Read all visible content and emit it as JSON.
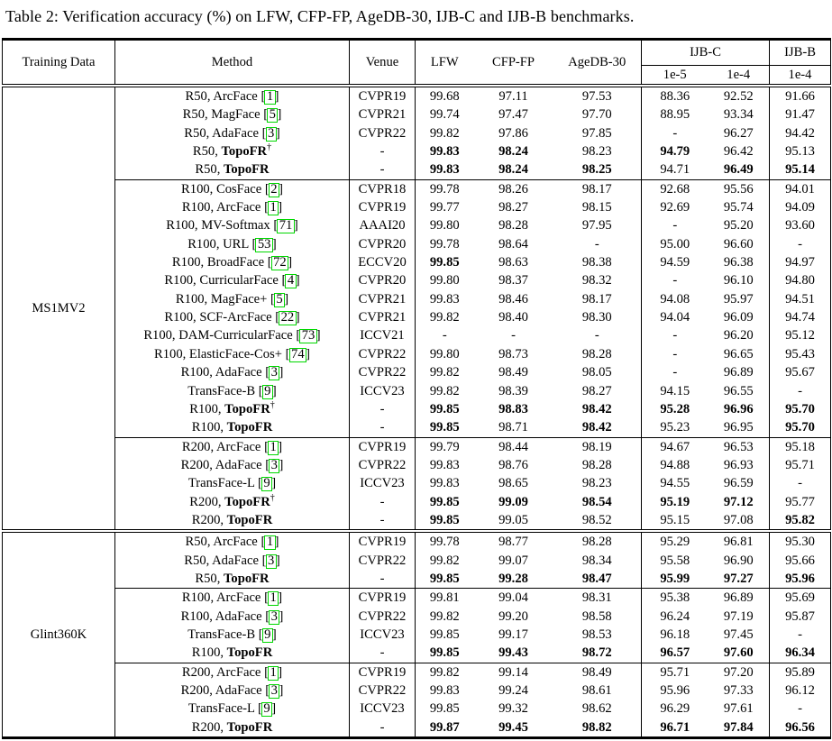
{
  "title": "Table 2: Verification accuracy (%) on LFW, CFP-FP, AgeDB-30, IJB-C and IJB-B benchmarks.",
  "colors": {
    "citation_box": "#00d800",
    "text": "#000000",
    "background": "#ffffff"
  },
  "table": {
    "header": {
      "training_data": "Training Data",
      "method": "Method",
      "venue": "Venue",
      "lfw": "LFW",
      "cfp_fp": "CFP-FP",
      "agedb30": "AgeDB-30",
      "ijbc": "IJB-C",
      "ijbb": "IJB-B",
      "ijbc_sub": [
        "1e-5",
        "1e-4"
      ],
      "ijbb_sub": [
        "1e-4"
      ]
    },
    "value_columns": [
      "LFW",
      "CFP-FP",
      "AgeDB-30",
      "IJB-C 1e-5",
      "IJB-C 1e-4",
      "IJB-B 1e-4"
    ],
    "sections": [
      {
        "training_data": "MS1MV2",
        "groups": [
          {
            "rows": [
              {
                "prefix": "R50, ",
                "name": "ArcFace",
                "cite": "1",
                "venue": "CVPR19",
                "values": [
                  "99.68",
                  "97.11",
                  "97.53",
                  "88.36",
                  "92.52",
                  "91.66"
                ],
                "bold_values": []
              },
              {
                "prefix": "R50, ",
                "name": "MagFace",
                "cite": "5",
                "venue": "CVPR21",
                "values": [
                  "99.74",
                  "97.47",
                  "97.70",
                  "88.95",
                  "93.34",
                  "91.47"
                ],
                "bold_values": []
              },
              {
                "prefix": "R50, ",
                "name": "AdaFace",
                "cite": "3",
                "venue": "CVPR22",
                "values": [
                  "99.82",
                  "97.86",
                  "97.85",
                  "-",
                  "96.27",
                  "94.42"
                ],
                "bold_values": []
              },
              {
                "prefix": "R50, ",
                "name": "TopoFR",
                "bold_name": true,
                "dagger": true,
                "venue": "-",
                "values": [
                  "99.83",
                  "98.24",
                  "98.23",
                  "94.79",
                  "96.42",
                  "95.13"
                ],
                "bold_values": [
                  0,
                  1,
                  3
                ]
              },
              {
                "prefix": "R50, ",
                "name": "TopoFR",
                "bold_name": true,
                "venue": "-",
                "values": [
                  "99.83",
                  "98.24",
                  "98.25",
                  "94.71",
                  "96.49",
                  "95.14"
                ],
                "bold_values": [
                  0,
                  1,
                  2,
                  4,
                  5
                ]
              }
            ]
          },
          {
            "rows": [
              {
                "prefix": "R100, ",
                "name": "CosFace",
                "cite": "2",
                "venue": "CVPR18",
                "values": [
                  "99.78",
                  "98.26",
                  "98.17",
                  "92.68",
                  "95.56",
                  "94.01"
                ],
                "bold_values": []
              },
              {
                "prefix": "R100, ",
                "name": "ArcFace",
                "cite": "1",
                "venue": "CVPR19",
                "values": [
                  "99.77",
                  "98.27",
                  "98.15",
                  "92.69",
                  "95.74",
                  "94.09"
                ],
                "bold_values": []
              },
              {
                "prefix": "R100, ",
                "name": "MV-Softmax",
                "cite": "71",
                "venue": "AAAI20",
                "values": [
                  "99.80",
                  "98.28",
                  "97.95",
                  "-",
                  "95.20",
                  "93.60"
                ],
                "bold_values": []
              },
              {
                "prefix": "R100, ",
                "name": "URL",
                "cite": "53",
                "venue": "CVPR20",
                "values": [
                  "99.78",
                  "98.64",
                  "-",
                  "95.00",
                  "96.60",
                  "-"
                ],
                "bold_values": []
              },
              {
                "prefix": "R100, ",
                "name": "BroadFace",
                "cite": "72",
                "venue": "ECCV20",
                "values": [
                  "99.85",
                  "98.63",
                  "98.38",
                  "94.59",
                  "96.38",
                  "94.97"
                ],
                "bold_values": [
                  0
                ]
              },
              {
                "prefix": "R100, ",
                "name": "CurricularFace",
                "cite": "4",
                "venue": "CVPR20",
                "values": [
                  "99.80",
                  "98.37",
                  "98.32",
                  "-",
                  "96.10",
                  "94.80"
                ],
                "bold_values": []
              },
              {
                "prefix": "R100, ",
                "name": "MagFace+",
                "cite": "5",
                "venue": "CVPR21",
                "values": [
                  "99.83",
                  "98.46",
                  "98.17",
                  "94.08",
                  "95.97",
                  "94.51"
                ],
                "bold_values": []
              },
              {
                "prefix": "R100, ",
                "name": "SCF-ArcFace",
                "cite": "22",
                "venue": "CVPR21",
                "values": [
                  "99.82",
                  "98.40",
                  "98.30",
                  "94.04",
                  "96.09",
                  "94.74"
                ],
                "bold_values": []
              },
              {
                "prefix": "R100, ",
                "name": "DAM-CurricularFace",
                "cite": "73",
                "venue": "ICCV21",
                "values": [
                  "-",
                  "-",
                  "-",
                  "-",
                  "96.20",
                  "95.12"
                ],
                "bold_values": []
              },
              {
                "prefix": "R100, ",
                "name": "ElasticFace-Cos+",
                "cite": "74",
                "venue": "CVPR22",
                "values": [
                  "99.80",
                  "98.73",
                  "98.28",
                  "-",
                  "96.65",
                  "95.43"
                ],
                "bold_values": []
              },
              {
                "prefix": "R100, ",
                "name": "AdaFace",
                "cite": "3",
                "venue": "CVPR22",
                "values": [
                  "99.82",
                  "98.49",
                  "98.05",
                  "-",
                  "96.89",
                  "95.67"
                ],
                "bold_values": []
              },
              {
                "prefix": "",
                "name": "TransFace-B",
                "cite": "9",
                "venue": "ICCV23",
                "values": [
                  "99.82",
                  "98.39",
                  "98.27",
                  "94.15",
                  "96.55",
                  "-"
                ],
                "bold_values": []
              },
              {
                "prefix": "R100, ",
                "name": "TopoFR",
                "bold_name": true,
                "dagger": true,
                "venue": "-",
                "values": [
                  "99.85",
                  "98.83",
                  "98.42",
                  "95.28",
                  "96.96",
                  "95.70"
                ],
                "bold_values": [
                  0,
                  1,
                  2,
                  3,
                  4,
                  5
                ]
              },
              {
                "prefix": "R100, ",
                "name": "TopoFR",
                "bold_name": true,
                "venue": "-",
                "values": [
                  "99.85",
                  "98.71",
                  "98.42",
                  "95.23",
                  "96.95",
                  "95.70"
                ],
                "bold_values": [
                  0,
                  2,
                  5
                ]
              }
            ]
          },
          {
            "rows": [
              {
                "prefix": "R200, ",
                "name": "ArcFace",
                "cite": "1",
                "venue": "CVPR19",
                "values": [
                  "99.79",
                  "98.44",
                  "98.19",
                  "94.67",
                  "96.53",
                  "95.18"
                ],
                "bold_values": []
              },
              {
                "prefix": "R200, ",
                "name": "AdaFace",
                "cite": "3",
                "venue": "CVPR22",
                "values": [
                  "99.83",
                  "98.76",
                  "98.28",
                  "94.88",
                  "96.93",
                  "95.71"
                ],
                "bold_values": []
              },
              {
                "prefix": "",
                "name": "TransFace-L",
                "cite": "9",
                "venue": "ICCV23",
                "values": [
                  "99.83",
                  "98.65",
                  "98.23",
                  "94.55",
                  "96.59",
                  "-"
                ],
                "bold_values": []
              },
              {
                "prefix": "R200, ",
                "name": "TopoFR",
                "bold_name": true,
                "dagger": true,
                "venue": "-",
                "values": [
                  "99.85",
                  "99.09",
                  "98.54",
                  "95.19",
                  "97.12",
                  "95.77"
                ],
                "bold_values": [
                  0,
                  1,
                  2,
                  3,
                  4
                ]
              },
              {
                "prefix": "R200, ",
                "name": "TopoFR",
                "bold_name": true,
                "venue": "-",
                "values": [
                  "99.85",
                  "99.05",
                  "98.52",
                  "95.15",
                  "97.08",
                  "95.82"
                ],
                "bold_values": [
                  0,
                  5
                ]
              }
            ]
          }
        ]
      },
      {
        "training_data": "Glint360K",
        "groups": [
          {
            "rows": [
              {
                "prefix": "R50, ",
                "name": "ArcFace",
                "cite": "1",
                "venue": "CVPR19",
                "values": [
                  "99.78",
                  "98.77",
                  "98.28",
                  "95.29",
                  "96.81",
                  "95.30"
                ],
                "bold_values": []
              },
              {
                "prefix": "R50, ",
                "name": "AdaFace",
                "cite": "3",
                "venue": "CVPR22",
                "values": [
                  "99.82",
                  "99.07",
                  "98.34",
                  "95.58",
                  "96.90",
                  "95.66"
                ],
                "bold_values": []
              },
              {
                "prefix": "R50, ",
                "name": "TopoFR",
                "bold_name": true,
                "venue": "-",
                "values": [
                  "99.85",
                  "99.28",
                  "98.47",
                  "95.99",
                  "97.27",
                  "95.96"
                ],
                "bold_values": [
                  0,
                  1,
                  2,
                  3,
                  4,
                  5
                ]
              }
            ]
          },
          {
            "rows": [
              {
                "prefix": "R100, ",
                "name": "ArcFace",
                "cite": "1",
                "venue": "CVPR19",
                "values": [
                  "99.81",
                  "99.04",
                  "98.31",
                  "95.38",
                  "96.89",
                  "95.69"
                ],
                "bold_values": []
              },
              {
                "prefix": "R100, ",
                "name": "AdaFace",
                "cite": "3",
                "venue": "CVPR22",
                "values": [
                  "99.82",
                  "99.20",
                  "98.58",
                  "96.24",
                  "97.19",
                  "95.87"
                ],
                "bold_values": []
              },
              {
                "prefix": "",
                "name": "TransFace-B",
                "cite": "9",
                "venue": "ICCV23",
                "values": [
                  "99.85",
                  "99.17",
                  "98.53",
                  "96.18",
                  "97.45",
                  "-"
                ],
                "bold_values": []
              },
              {
                "prefix": "R100, ",
                "name": "TopoFR",
                "bold_name": true,
                "venue": "-",
                "values": [
                  "99.85",
                  "99.43",
                  "98.72",
                  "96.57",
                  "97.60",
                  "96.34"
                ],
                "bold_values": [
                  0,
                  1,
                  2,
                  3,
                  4,
                  5
                ]
              }
            ]
          },
          {
            "rows": [
              {
                "prefix": "R200, ",
                "name": "ArcFace",
                "cite": "1",
                "venue": "CVPR19",
                "values": [
                  "99.82",
                  "99.14",
                  "98.49",
                  "95.71",
                  "97.20",
                  "95.89"
                ],
                "bold_values": []
              },
              {
                "prefix": "R200, ",
                "name": "AdaFace",
                "cite": "3",
                "venue": "CVPR22",
                "values": [
                  "99.83",
                  "99.24",
                  "98.61",
                  "95.96",
                  "97.33",
                  "96.12"
                ],
                "bold_values": []
              },
              {
                "prefix": "",
                "name": "TransFace-L",
                "cite": "9",
                "venue": "ICCV23",
                "values": [
                  "99.85",
                  "99.32",
                  "98.62",
                  "96.29",
                  "97.61",
                  "-"
                ],
                "bold_values": []
              },
              {
                "prefix": "R200, ",
                "name": "TopoFR",
                "bold_name": true,
                "venue": "-",
                "values": [
                  "99.87",
                  "99.45",
                  "98.82",
                  "96.71",
                  "97.84",
                  "96.56"
                ],
                "bold_values": [
                  0,
                  1,
                  2,
                  3,
                  4,
                  5
                ]
              }
            ]
          }
        ]
      }
    ]
  }
}
